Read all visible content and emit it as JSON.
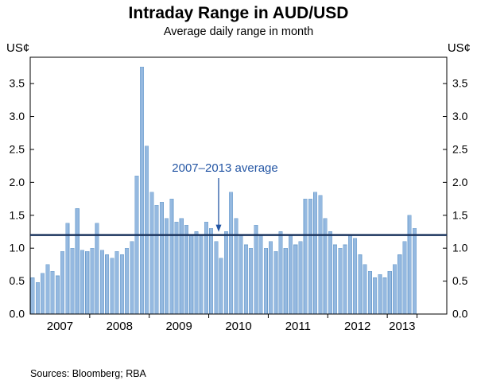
{
  "chart_data": {
    "type": "bar",
    "title": "Intraday Range in AUD/USD",
    "subtitle": "Average daily range in month",
    "y_unit": "US¢",
    "y_ticks": [
      0.0,
      0.5,
      1.0,
      1.5,
      2.0,
      2.5,
      3.0,
      3.5
    ],
    "y_max": 3.9,
    "x_total_month_slots": 84,
    "average": {
      "value": 1.2,
      "label": "2007–2013 average"
    },
    "sources": "Sources: Bloomberg; RBA",
    "years": [
      {
        "label": "2007",
        "values": [
          0.55,
          0.48,
          0.62,
          0.75,
          0.65,
          0.58,
          0.95,
          1.38,
          1.0,
          1.6,
          0.97,
          0.95
        ]
      },
      {
        "label": "2008",
        "values": [
          1.0,
          1.38,
          0.97,
          0.9,
          0.85,
          0.95,
          0.9,
          1.0,
          1.1,
          2.1,
          3.75,
          2.55
        ]
      },
      {
        "label": "2009",
        "values": [
          1.85,
          1.65,
          1.7,
          1.45,
          1.75,
          1.4,
          1.45,
          1.35,
          1.2,
          1.25,
          1.2,
          1.4
        ]
      },
      {
        "label": "2010",
        "values": [
          1.3,
          1.1,
          0.85,
          1.25,
          1.85,
          1.45,
          1.2,
          1.05,
          1.0,
          1.35,
          1.2,
          1.0
        ]
      },
      {
        "label": "2011",
        "values": [
          1.1,
          0.95,
          1.25,
          1.0,
          1.2,
          1.05,
          1.1,
          1.75,
          1.75,
          1.85,
          1.8,
          1.45
        ]
      },
      {
        "label": "2012",
        "values": [
          1.25,
          1.05,
          1.0,
          1.05,
          1.2,
          1.15,
          0.9,
          0.75,
          0.65,
          0.55,
          0.6,
          0.55
        ]
      },
      {
        "label": "2013",
        "values": [
          0.65,
          0.75,
          0.9,
          1.1,
          1.5,
          1.3
        ]
      }
    ],
    "colors": {
      "bar": "#95b9e0",
      "bar_border": "#6f9fce",
      "average_line": "#1c355e",
      "annotation": "#2456a4",
      "axis": "#000000"
    }
  }
}
